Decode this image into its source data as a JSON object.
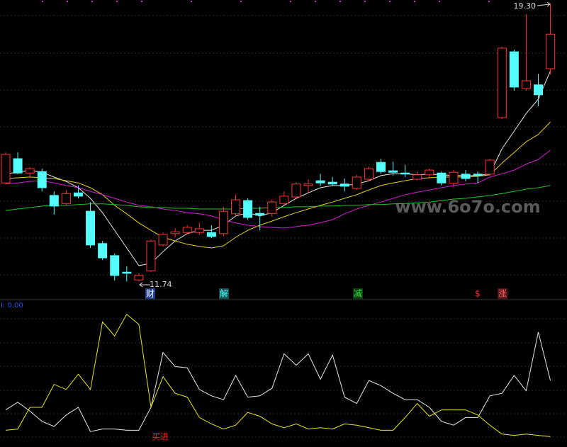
{
  "chart_data": [
    {
      "type": "candlestick",
      "ylim": [
        11.3,
        19.4
      ],
      "colors": {
        "up": "#ff3232",
        "down": "#54fcfc"
      },
      "candles": [
        [
          14.42,
          15.25,
          14.39,
          15.2
        ],
        [
          15.08,
          15.25,
          14.66,
          14.69
        ],
        [
          14.69,
          14.85,
          14.58,
          14.81
        ],
        [
          14.73,
          14.81,
          14.19,
          14.29
        ],
        [
          14.08,
          14.19,
          13.56,
          13.79
        ],
        [
          13.86,
          14.23,
          13.81,
          14.13
        ],
        [
          14.15,
          14.35,
          14.0,
          14.06
        ],
        [
          13.65,
          13.9,
          12.65,
          12.73
        ],
        [
          12.77,
          12.84,
          12.32,
          12.38
        ],
        [
          12.44,
          12.5,
          11.76,
          11.9
        ],
        [
          11.99,
          12.15,
          11.74,
          11.96
        ],
        [
          11.78,
          11.96,
          11.74,
          11.9
        ],
        [
          12.03,
          12.88,
          11.99,
          12.84
        ],
        [
          12.73,
          13.07,
          12.69,
          13.02
        ],
        [
          13.04,
          13.19,
          12.94,
          13.09
        ],
        [
          13.07,
          13.27,
          13.02,
          13.21
        ],
        [
          13.07,
          13.34,
          13.0,
          13.17
        ],
        [
          13.07,
          13.27,
          12.92,
          12.96
        ],
        [
          13.04,
          13.77,
          12.98,
          13.65
        ],
        [
          13.58,
          14.1,
          13.52,
          13.96
        ],
        [
          13.94,
          14.0,
          13.42,
          13.48
        ],
        [
          13.59,
          13.77,
          13.13,
          13.54
        ],
        [
          13.59,
          13.96,
          13.5,
          13.9
        ],
        [
          13.86,
          14.19,
          13.81,
          14.06
        ],
        [
          14.04,
          14.44,
          13.98,
          14.39
        ],
        [
          14.35,
          14.52,
          14.15,
          14.39
        ],
        [
          14.48,
          14.67,
          14.33,
          14.42
        ],
        [
          14.44,
          14.58,
          14.35,
          14.39
        ],
        [
          14.39,
          14.54,
          14.19,
          14.33
        ],
        [
          14.27,
          14.64,
          14.23,
          14.58
        ],
        [
          14.52,
          14.87,
          14.48,
          14.81
        ],
        [
          14.98,
          15.08,
          14.67,
          14.73
        ],
        [
          14.75,
          15.0,
          14.62,
          14.71
        ],
        [
          14.69,
          14.91,
          14.58,
          14.66
        ],
        [
          14.52,
          14.73,
          14.48,
          14.64
        ],
        [
          14.64,
          14.81,
          14.54,
          14.77
        ],
        [
          14.69,
          14.73,
          14.35,
          14.42
        ],
        [
          14.41,
          14.77,
          14.29,
          14.71
        ],
        [
          14.66,
          14.77,
          14.46,
          14.54
        ],
        [
          14.66,
          14.73,
          14.42,
          14.62
        ],
        [
          14.66,
          15.08,
          14.62,
          15.04
        ],
        [
          16.2,
          18.13,
          16.16,
          18.09
        ],
        [
          17.99,
          18.05,
          16.93,
          17.03
        ],
        [
          16.99,
          19.01,
          16.93,
          17.2
        ],
        [
          17.09,
          17.39,
          16.51,
          16.82
        ],
        [
          17.53,
          19.3,
          17.37,
          18.47
        ]
      ],
      "lines": [
        {
          "color": "#e8e8e8",
          "values": [
            14.67,
            14.71,
            14.77,
            14.71,
            14.58,
            14.46,
            14.29,
            14.0,
            13.61,
            13.13,
            12.65,
            12.17,
            12.23,
            12.55,
            12.84,
            13.04,
            13.13,
            13.13,
            13.27,
            13.52,
            13.61,
            13.52,
            13.61,
            13.81,
            14.0,
            14.15,
            14.29,
            14.35,
            14.35,
            14.39,
            14.48,
            14.62,
            14.67,
            14.67,
            14.64,
            14.66,
            14.64,
            14.62,
            14.62,
            14.62,
            14.67,
            15.35,
            15.83,
            16.31,
            16.7,
            17.47
          ]
        },
        {
          "color": "#e6d21e",
          "values": [
            14.54,
            14.56,
            14.58,
            14.56,
            14.54,
            14.48,
            14.42,
            14.29,
            14.1,
            13.81,
            13.58,
            13.33,
            13.13,
            12.94,
            12.84,
            12.75,
            12.69,
            12.65,
            12.71,
            12.94,
            13.13,
            13.27,
            13.38,
            13.5,
            13.61,
            13.71,
            13.81,
            13.9,
            14.0,
            14.1,
            14.23,
            14.35,
            14.42,
            14.48,
            14.54,
            14.56,
            14.58,
            14.58,
            14.58,
            14.6,
            14.64,
            14.96,
            15.25,
            15.54,
            15.74,
            16.08
          ]
        },
        {
          "color": "#d21ed2",
          "values": [
            14.39,
            14.42,
            14.46,
            14.48,
            14.42,
            14.35,
            14.29,
            14.19,
            14.1,
            14.0,
            13.9,
            13.81,
            13.77,
            13.71,
            13.67,
            13.61,
            13.58,
            13.52,
            13.42,
            13.33,
            13.27,
            13.23,
            13.21,
            13.19,
            13.23,
            13.27,
            13.34,
            13.42,
            13.58,
            13.71,
            13.81,
            13.9,
            14.0,
            14.1,
            14.17,
            14.23,
            14.29,
            14.35,
            14.39,
            14.42,
            14.58,
            14.67,
            14.77,
            14.93,
            15.06,
            15.31
          ]
        },
        {
          "color": "#1ec81e",
          "values": [
            13.67,
            13.71,
            13.75,
            13.79,
            13.81,
            13.81,
            13.83,
            13.85,
            13.85,
            13.83,
            13.81,
            13.77,
            13.75,
            13.75,
            13.73,
            13.73,
            13.71,
            13.71,
            13.71,
            13.71,
            13.73,
            13.73,
            13.75,
            13.75,
            13.77,
            13.77,
            13.79,
            13.79,
            13.81,
            13.81,
            13.83,
            13.83,
            13.85,
            13.86,
            13.88,
            13.9,
            13.94,
            13.98,
            14.0,
            14.04,
            14.08,
            14.13,
            14.19,
            14.25,
            14.29,
            14.35
          ]
        }
      ],
      "annotations": [
        "19.30",
        "11.74"
      ],
      "events": [
        "财",
        "解",
        "减",
        "$",
        "涨"
      ],
      "watermark": "www.6o7o.com"
    },
    {
      "type": "line",
      "label": "I: 0.00",
      "ylim": [
        0,
        100
      ],
      "series": [
        {
          "color": "#e8e8e8",
          "values": [
            23,
            29,
            22,
            14,
            10,
            19,
            25,
            6,
            8,
            8,
            7,
            7,
            25,
            68,
            57,
            56,
            39,
            34,
            31,
            50,
            33,
            34,
            40,
            67,
            58,
            67,
            47,
            66,
            33,
            28,
            46,
            42,
            36,
            31,
            31,
            25,
            14,
            11,
            17,
            17,
            34,
            36,
            50,
            38,
            84,
            46
          ]
        },
        {
          "color": "#e6e61e",
          "values": [
            7,
            8,
            25,
            25,
            43,
            39,
            51,
            39,
            92,
            81,
            98,
            90,
            25,
            49,
            36,
            33,
            17,
            12,
            8,
            11,
            21,
            18,
            12,
            9,
            12,
            8,
            9,
            8,
            12,
            11,
            9,
            7,
            7,
            17,
            28,
            18,
            23,
            23,
            23,
            19,
            11,
            4,
            3,
            4,
            3,
            2
          ]
        }
      ],
      "annotations": [
        "买进"
      ]
    }
  ]
}
